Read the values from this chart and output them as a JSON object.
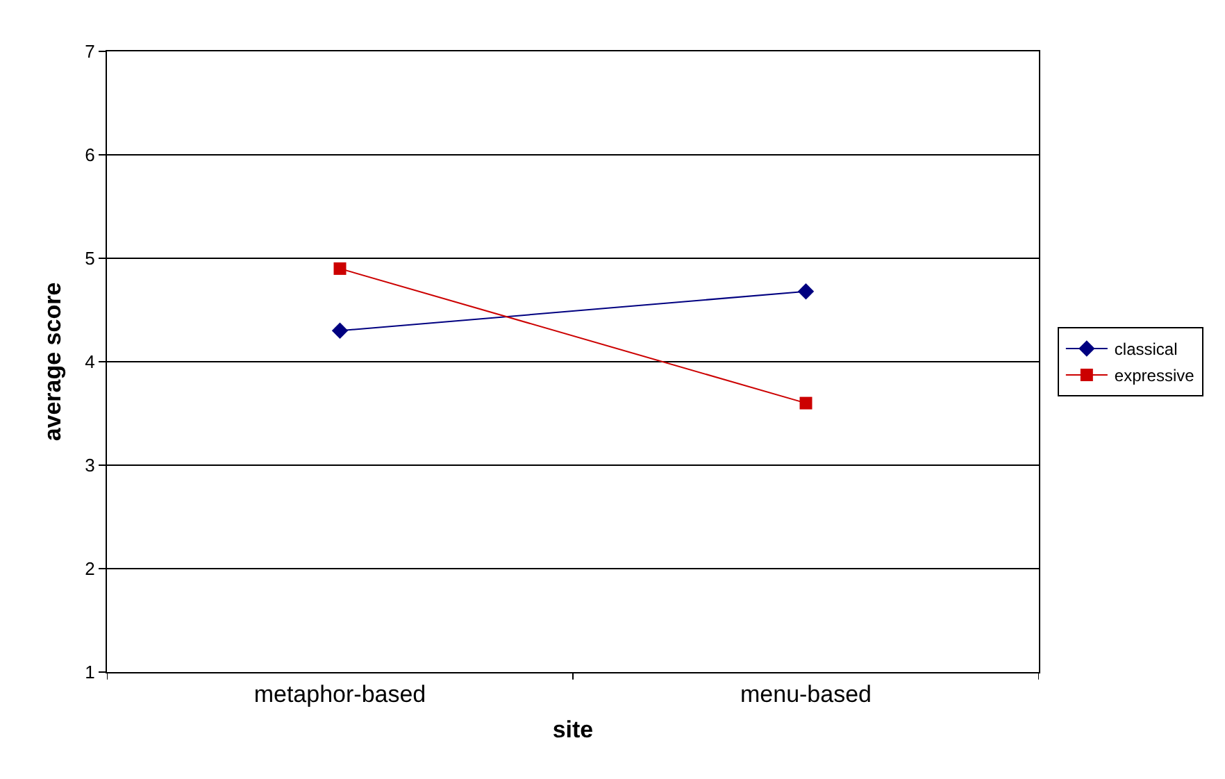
{
  "chart_data": {
    "type": "line",
    "xlabel": "site",
    "ylabel": "average score",
    "categories": [
      "metaphor-based",
      "menu-based"
    ],
    "series": [
      {
        "name": "classical",
        "color": "#000080",
        "marker": "diamond",
        "values": [
          4.3,
          4.68
        ]
      },
      {
        "name": "expressive",
        "color": "#cc0000",
        "marker": "square",
        "values": [
          4.9,
          3.6
        ]
      }
    ],
    "ylim": [
      1,
      7
    ],
    "yticks": [
      1,
      2,
      3,
      4,
      5,
      6,
      7
    ],
    "grid": "y",
    "legend": "right",
    "line_style": "solid"
  }
}
